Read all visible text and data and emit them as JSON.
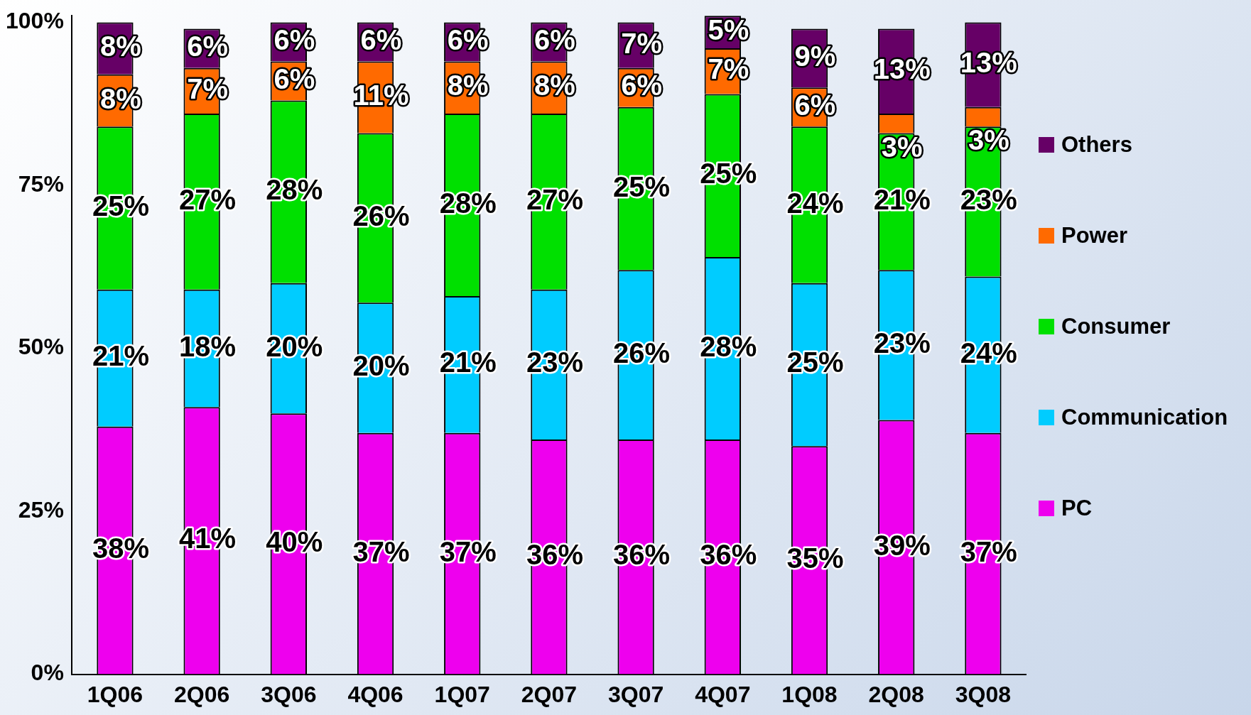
{
  "chart_data": {
    "type": "bar",
    "stacked": true,
    "categories": [
      "1Q06",
      "2Q06",
      "3Q06",
      "4Q06",
      "1Q07",
      "2Q07",
      "3Q07",
      "4Q07",
      "1Q08",
      "2Q08",
      "3Q08"
    ],
    "series": [
      {
        "name": "PC",
        "color": "#ee00ee",
        "values": [
          38,
          41,
          40,
          37,
          37,
          36,
          36,
          36,
          35,
          39,
          37
        ],
        "value_labels": [
          "38%",
          "41%",
          "40%",
          "37%",
          "37%",
          "36%",
          "36%",
          "36%",
          "35%",
          "39%",
          "37%"
        ]
      },
      {
        "name": "Communication",
        "color": "#00ccff",
        "values": [
          21,
          18,
          20,
          20,
          21,
          23,
          26,
          28,
          25,
          23,
          24
        ],
        "value_labels": [
          "21%",
          "18%",
          "20%",
          "20%",
          "21%",
          "23%",
          "26%",
          "28%",
          "25%",
          "23%",
          "24%"
        ]
      },
      {
        "name": "Consumer",
        "color": "#00e000",
        "values": [
          25,
          27,
          28,
          26,
          28,
          27,
          25,
          25,
          24,
          21,
          23
        ],
        "value_labels": [
          "25%",
          "27%",
          "28%",
          "26%",
          "28%",
          "27%",
          "25%",
          "25%",
          "24%",
          "21%",
          "23%"
        ]
      },
      {
        "name": "Power",
        "color": "#ff6a00",
        "values": [
          8,
          7,
          6,
          11,
          8,
          8,
          6,
          7,
          6,
          3,
          3
        ],
        "value_labels": [
          "8%",
          "7%",
          "6%",
          "11%",
          "8%",
          "8%",
          "6%",
          "7%",
          "6%",
          "3%",
          "3%"
        ]
      },
      {
        "name": "Others",
        "color": "#660066",
        "values": [
          8,
          6,
          6,
          6,
          6,
          6,
          7,
          5,
          9,
          13,
          13
        ],
        "value_labels": [
          "8%",
          "6%",
          "6%",
          "6%",
          "6%",
          "6%",
          "7%",
          "5%",
          "9%",
          "13%",
          "13%"
        ]
      }
    ],
    "ylim": [
      0,
      101
    ],
    "yticks": [
      {
        "value": 0,
        "label": "0%"
      },
      {
        "value": 25,
        "label": "25%"
      },
      {
        "value": 50,
        "label": "50%"
      },
      {
        "value": 75,
        "label": "75%"
      },
      {
        "value": 100,
        "label": "100%"
      }
    ],
    "grid": false,
    "legend": "right"
  }
}
